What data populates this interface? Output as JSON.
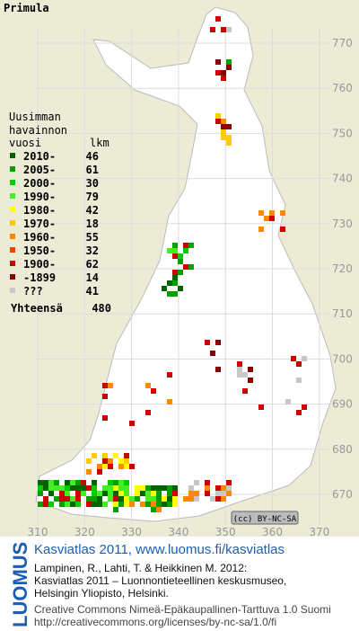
{
  "title": "Primula",
  "legend": {
    "heading": [
      "Uusimman",
      "havainnon"
    ],
    "col_year": "vuosi",
    "col_count": "lkm",
    "rows": [
      {
        "label": "2010-",
        "count": 46,
        "color": "#006400"
      },
      {
        "label": "2005-",
        "count": 61,
        "color": "#00a000"
      },
      {
        "label": "2000-",
        "count": 30,
        "color": "#00cc00"
      },
      {
        "label": "1990-",
        "count": 79,
        "color": "#44ee22"
      },
      {
        "label": "1980-",
        "count": 42,
        "color": "#ffff00"
      },
      {
        "label": "1970-",
        "count": 18,
        "color": "#ffcc00"
      },
      {
        "label": "1960-",
        "count": 55,
        "color": "#ff8800"
      },
      {
        "label": "1950-",
        "count": 32,
        "color": "#ee4400"
      },
      {
        "label": "1900-",
        "count": 62,
        "color": "#cc0000"
      },
      {
        "label": "-1899",
        "count": 14,
        "color": "#880000"
      },
      {
        "label": "???",
        "count": 41,
        "color": "#c8c8c8"
      }
    ],
    "total_label": "Yhteensä",
    "total": 480
  },
  "y_axis": {
    "labels": [
      770,
      760,
      750,
      740,
      730,
      720,
      710,
      700,
      690,
      680,
      670
    ]
  },
  "x_axis": {
    "labels": [
      310,
      320,
      330,
      340,
      350,
      360,
      370
    ]
  },
  "license_badge": "(cc) BY-NC-SA",
  "footer": {
    "brand": "LUOMUS",
    "site": "Kasviatlas 2011, www.luomus.fi/kasviatlas",
    "citation": [
      "Lampinen, R., Lahti, T. & Heikkinen M. 2012:",
      "Kasviatlas 2011 – Luonnontieteellinen keskusmuseo,",
      "Helsingin Yliopisto, Helsinki."
    ],
    "license": [
      "Creative Commons Nimeä-Epäkaupallinen-Tarttuva 1.0 Suomi",
      "http://creativecommons.org/licenses/by-nc-sa/1.0/fi"
    ]
  }
}
